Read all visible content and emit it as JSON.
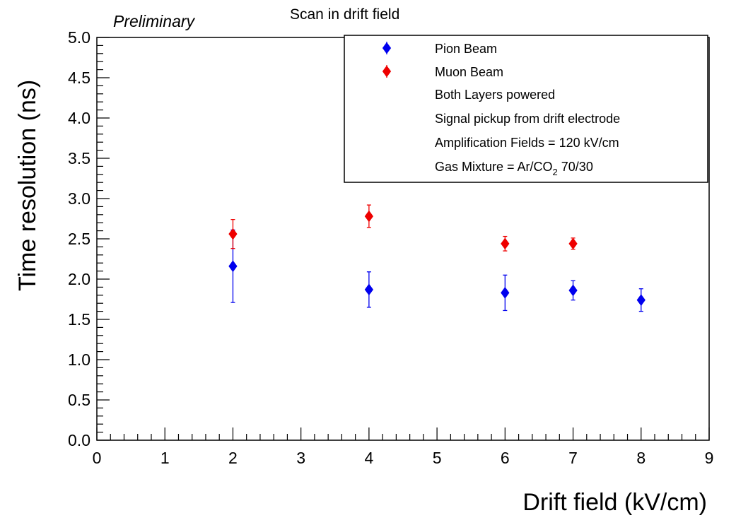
{
  "chart_data": {
    "type": "scatter",
    "title": "Scan in drift field",
    "annotation": "Preliminary",
    "xlabel": "Drift field (kV/cm)",
    "ylabel": "Time resolution (ns)",
    "xlim": [
      0,
      9
    ],
    "ylim": [
      0,
      5
    ],
    "x_ticks": [
      "0",
      "1",
      "2",
      "3",
      "4",
      "5",
      "6",
      "7",
      "8",
      "9"
    ],
    "y_ticks": [
      "0.0",
      "0.5",
      "1.0",
      "1.5",
      "2.0",
      "2.5",
      "3.0",
      "3.5",
      "4.0",
      "4.5",
      "5.0"
    ],
    "grid": false,
    "legend_position": "top-right",
    "series": [
      {
        "name": "Pion Beam",
        "color": "#0000ee",
        "marker": "diamond",
        "points": [
          {
            "x": 2,
            "y": 2.16,
            "err": 0.45
          },
          {
            "x": 4,
            "y": 1.87,
            "err": 0.22
          },
          {
            "x": 6,
            "y": 1.83,
            "err": 0.22
          },
          {
            "x": 7,
            "y": 1.86,
            "err": 0.12
          },
          {
            "x": 8,
            "y": 1.74,
            "err": 0.14
          }
        ]
      },
      {
        "name": "Muon Beam",
        "color": "#ee0000",
        "marker": "diamond",
        "points": [
          {
            "x": 2,
            "y": 2.56,
            "err": 0.18
          },
          {
            "x": 4,
            "y": 2.78,
            "err": 0.14
          },
          {
            "x": 6,
            "y": 2.44,
            "err": 0.09
          },
          {
            "x": 7,
            "y": 2.44,
            "err": 0.07
          }
        ]
      }
    ],
    "legend_notes": [
      "Both Layers powered",
      "Signal pickup from drift electrode",
      "Amplification Fields = 120 kV/cm"
    ],
    "gas_note": {
      "prefix": "Gas Mixture = Ar/CO",
      "subscript": "2",
      "suffix": " 70/30"
    }
  }
}
